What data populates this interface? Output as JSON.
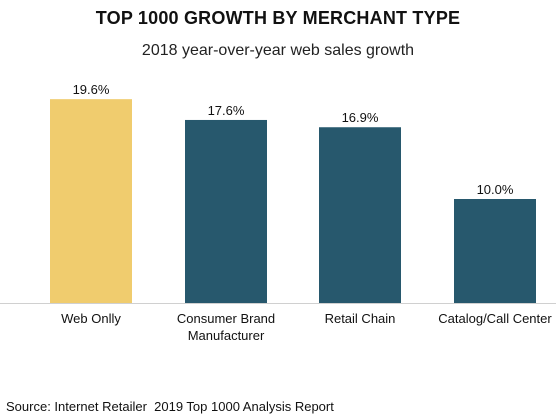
{
  "chart_data": {
    "type": "bar",
    "title": "TOP 1000 GROWTH BY MERCHANT TYPE",
    "subtitle": "2018 year-over-year web sales growth",
    "categories": [
      "Web Onlly",
      "Consumer Brand Manufacturer",
      "Retail Chain",
      "Catalog/Call Center"
    ],
    "category_lines": [
      [
        "Web Onlly"
      ],
      [
        "Consumer Brand",
        "Manufacturer"
      ],
      [
        "Retail Chain"
      ],
      [
        "Catalog/Call Center"
      ]
    ],
    "values": [
      19.6,
      17.6,
      16.9,
      10.0
    ],
    "data_labels": [
      "19.6%",
      "17.6%",
      "16.9%",
      "10.0%"
    ],
    "bar_colors": [
      "#f0cc6e",
      "#27586d",
      "#27586d",
      "#27586d"
    ],
    "ylim": [
      0,
      20
    ],
    "grid": false,
    "legend": "none",
    "xlabel": "",
    "ylabel": ""
  },
  "source": "Source: Internet Retailer  2019 Top 1000 Analysis Report"
}
